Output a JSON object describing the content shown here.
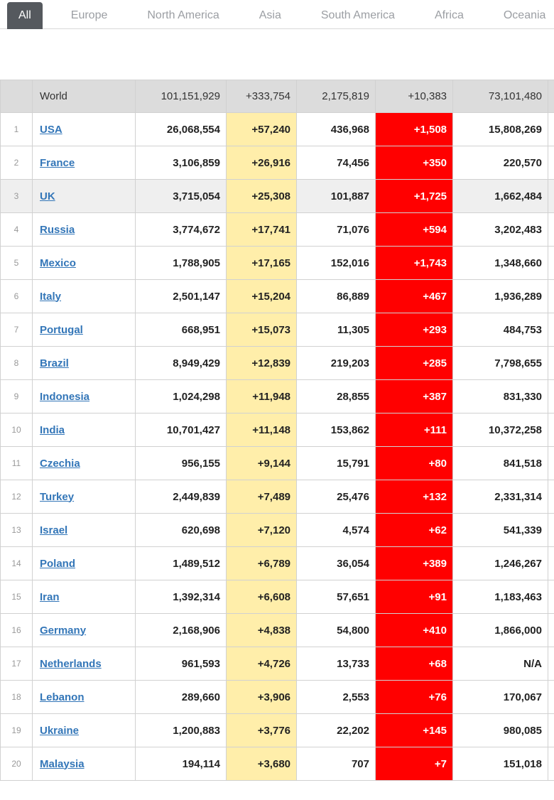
{
  "tabs": [
    {
      "label": "All",
      "active": true
    },
    {
      "label": "Europe",
      "active": false
    },
    {
      "label": "North America",
      "active": false
    },
    {
      "label": "Asia",
      "active": false
    },
    {
      "label": "South America",
      "active": false
    },
    {
      "label": "Africa",
      "active": false
    },
    {
      "label": "Oceania",
      "active": false
    }
  ],
  "colors": {
    "active_tab_bg": "#55595e",
    "inactive_tab_text": "#9b9ea3",
    "new_cases_bg": "#ffeeaa",
    "new_deaths_bg": "#ff0000",
    "link_blue": "#3376b8",
    "header_row_bg": "#dcdcdc",
    "highlight_row_bg": "#efefef"
  },
  "table": {
    "world_row": {
      "country": "World",
      "total_cases": "101,151,929",
      "new_cases": "+333,754",
      "deaths": "2,175,819",
      "new_deaths": "+10,383",
      "recovered": "73,101,480"
    },
    "rows": [
      {
        "rank": "1",
        "country": "USA",
        "total_cases": "26,068,554",
        "new_cases": "+57,240",
        "deaths": "436,968",
        "new_deaths": "+1,508",
        "recovered": "15,808,269",
        "highlighted": false
      },
      {
        "rank": "2",
        "country": "France",
        "total_cases": "3,106,859",
        "new_cases": "+26,916",
        "deaths": "74,456",
        "new_deaths": "+350",
        "recovered": "220,570",
        "highlighted": false
      },
      {
        "rank": "3",
        "country": "UK",
        "total_cases": "3,715,054",
        "new_cases": "+25,308",
        "deaths": "101,887",
        "new_deaths": "+1,725",
        "recovered": "1,662,484",
        "highlighted": true
      },
      {
        "rank": "4",
        "country": "Russia",
        "total_cases": "3,774,672",
        "new_cases": "+17,741",
        "deaths": "71,076",
        "new_deaths": "+594",
        "recovered": "3,202,483",
        "highlighted": false
      },
      {
        "rank": "5",
        "country": "Mexico",
        "total_cases": "1,788,905",
        "new_cases": "+17,165",
        "deaths": "152,016",
        "new_deaths": "+1,743",
        "recovered": "1,348,660",
        "highlighted": false
      },
      {
        "rank": "6",
        "country": "Italy",
        "total_cases": "2,501,147",
        "new_cases": "+15,204",
        "deaths": "86,889",
        "new_deaths": "+467",
        "recovered": "1,936,289",
        "highlighted": false
      },
      {
        "rank": "7",
        "country": "Portugal",
        "total_cases": "668,951",
        "new_cases": "+15,073",
        "deaths": "11,305",
        "new_deaths": "+293",
        "recovered": "484,753",
        "highlighted": false
      },
      {
        "rank": "8",
        "country": "Brazil",
        "total_cases": "8,949,429",
        "new_cases": "+12,839",
        "deaths": "219,203",
        "new_deaths": "+285",
        "recovered": "7,798,655",
        "highlighted": false
      },
      {
        "rank": "9",
        "country": "Indonesia",
        "total_cases": "1,024,298",
        "new_cases": "+11,948",
        "deaths": "28,855",
        "new_deaths": "+387",
        "recovered": "831,330",
        "highlighted": false
      },
      {
        "rank": "10",
        "country": "India",
        "total_cases": "10,701,427",
        "new_cases": "+11,148",
        "deaths": "153,862",
        "new_deaths": "+111",
        "recovered": "10,372,258",
        "highlighted": false
      },
      {
        "rank": "11",
        "country": "Czechia",
        "total_cases": "956,155",
        "new_cases": "+9,144",
        "deaths": "15,791",
        "new_deaths": "+80",
        "recovered": "841,518",
        "highlighted": false
      },
      {
        "rank": "12",
        "country": "Turkey",
        "total_cases": "2,449,839",
        "new_cases": "+7,489",
        "deaths": "25,476",
        "new_deaths": "+132",
        "recovered": "2,331,314",
        "highlighted": false
      },
      {
        "rank": "13",
        "country": "Israel",
        "total_cases": "620,698",
        "new_cases": "+7,120",
        "deaths": "4,574",
        "new_deaths": "+62",
        "recovered": "541,339",
        "highlighted": false
      },
      {
        "rank": "14",
        "country": "Poland",
        "total_cases": "1,489,512",
        "new_cases": "+6,789",
        "deaths": "36,054",
        "new_deaths": "+389",
        "recovered": "1,246,267",
        "highlighted": false
      },
      {
        "rank": "15",
        "country": "Iran",
        "total_cases": "1,392,314",
        "new_cases": "+6,608",
        "deaths": "57,651",
        "new_deaths": "+91",
        "recovered": "1,183,463",
        "highlighted": false
      },
      {
        "rank": "16",
        "country": "Germany",
        "total_cases": "2,168,906",
        "new_cases": "+4,838",
        "deaths": "54,800",
        "new_deaths": "+410",
        "recovered": "1,866,000",
        "highlighted": false
      },
      {
        "rank": "17",
        "country": "Netherlands",
        "total_cases": "961,593",
        "new_cases": "+4,726",
        "deaths": "13,733",
        "new_deaths": "+68",
        "recovered": "N/A",
        "highlighted": false
      },
      {
        "rank": "18",
        "country": "Lebanon",
        "total_cases": "289,660",
        "new_cases": "+3,906",
        "deaths": "2,553",
        "new_deaths": "+76",
        "recovered": "170,067",
        "highlighted": false
      },
      {
        "rank": "19",
        "country": "Ukraine",
        "total_cases": "1,200,883",
        "new_cases": "+3,776",
        "deaths": "22,202",
        "new_deaths": "+145",
        "recovered": "980,085",
        "highlighted": false
      },
      {
        "rank": "20",
        "country": "Malaysia",
        "total_cases": "194,114",
        "new_cases": "+3,680",
        "deaths": "707",
        "new_deaths": "+7",
        "recovered": "151,018",
        "highlighted": false
      }
    ]
  }
}
